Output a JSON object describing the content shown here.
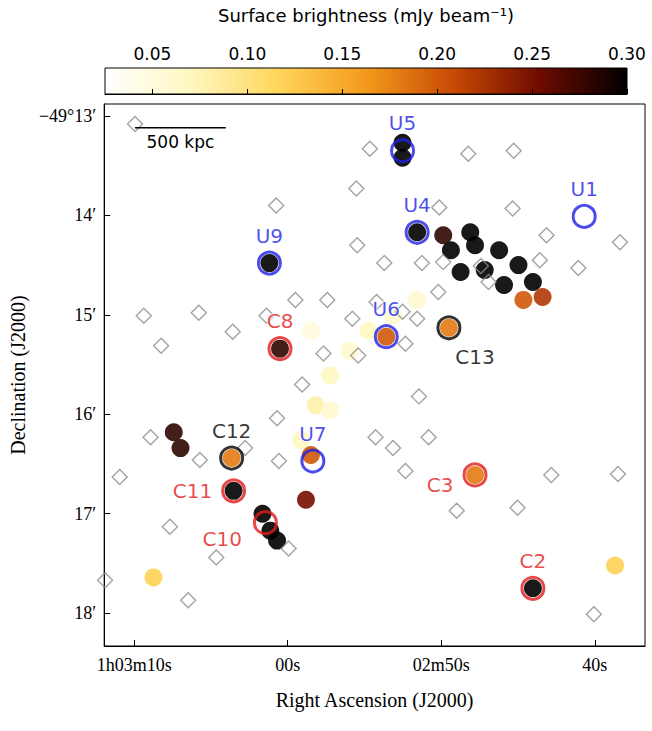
{
  "chart_data": {
    "type": "scatter",
    "xlabel": "Right Ascension (J2000)",
    "ylabel": "Declination (J2000)",
    "xlim": [
      71.95,
      36.73
    ],
    "ylim": [
      18.33,
      12.88
    ],
    "xticks": [
      {
        "value": 70,
        "label": "1h03m10s"
      },
      {
        "value": 60,
        "label": "00s"
      },
      {
        "value": 50,
        "label": "02m50s"
      },
      {
        "value": 40,
        "label": "40s"
      }
    ],
    "yticks": [
      {
        "value": 13,
        "label": "−49°13′"
      },
      {
        "value": 14,
        "label": "14′"
      },
      {
        "value": 15,
        "label": "15′"
      },
      {
        "value": 16,
        "label": "16′"
      },
      {
        "value": 17,
        "label": "17′"
      },
      {
        "value": 18,
        "label": "18′"
      }
    ],
    "grid": false,
    "colorbar": {
      "label": "Surface brightness (mJy beam⁻¹)",
      "range": [
        0.025,
        0.3
      ],
      "ticks": [
        0.05,
        {
          "value": 0.1,
          "label": "0.10"
        },
        0.15,
        {
          "value": 0.2,
          "label": "0.20"
        },
        0.25,
        {
          "value": 0.3,
          "label": "0.30"
        }
      ]
    },
    "emission": {
      "x": [
        49.37,
        47.8,
        46.23,
        44.97,
        44.03,
        43.4,
        44.65,
        47.17,
        48.74,
        45.91,
        48.11,
        49.87,
        52.52,
        52.52,
        51.57,
        61.19,
        60.5,
        53.58,
        49.5,
        59.12,
        58.18,
        57.23,
        55.97,
        54.72,
        53.14,
        51.57,
        58.49,
        57.23,
        58.49,
        58.81,
        63.65,
        67.42,
        66.98,
        63.52,
        61.64,
        61.13,
        60.69,
        47.8,
        44.03,
        68.74,
        38.68
      ],
      "y": [
        14.35,
        14.3,
        14.35,
        14.5,
        14.67,
        14.82,
        14.85,
        14.55,
        14.57,
        14.7,
        14.17,
        14.2,
        13.27,
        13.42,
        14.17,
        14.48,
        15.34,
        15.22,
        15.13,
        16.26,
        15.91,
        15.61,
        15.36,
        15.16,
        15.01,
        14.85,
        15.16,
        15.96,
        16.41,
        16.86,
        16.44,
        16.18,
        16.34,
        16.77,
        17.0,
        17.17,
        17.27,
        16.61,
        17.75,
        17.64,
        17.52
      ],
      "values": [
        0.3,
        0.3,
        0.3,
        0.3,
        0.3,
        0.22,
        0.2,
        0.3,
        0.3,
        0.3,
        0.3,
        0.28,
        0.3,
        0.3,
        0.3,
        0.3,
        0.28,
        0.2,
        0.18,
        0.07,
        0.08,
        0.07,
        0.06,
        0.07,
        0.06,
        0.06,
        0.05,
        0.06,
        0.2,
        0.25,
        0.18,
        0.28,
        0.28,
        0.3,
        0.3,
        0.3,
        0.3,
        0.18,
        0.3,
        0.12,
        0.12
      ]
    },
    "diamonds": {
      "color": "#8c8c8c",
      "marker": "diamond",
      "x": [
        69.94,
        54.65,
        48.24,
        45.28,
        55.53,
        60.75,
        50.13,
        45.35,
        43.14,
        55.47,
        53.71,
        51.26,
        49.87,
        47.42,
        46.92,
        43.58,
        41.07,
        38.36,
        59.5,
        57.42,
        61.38,
        55.79,
        54.21,
        52.52,
        51.57,
        50.19,
        69.37,
        65.79,
        68.24,
        63.58,
        57.67,
        55.41,
        52.33,
        59.06,
        51.45,
        60.69,
        62.77,
        54.28,
        53.14,
        52.33,
        50.82,
        68.93,
        65.72,
        70.94,
        48.99,
        45.03,
        42.83,
        38.49,
        59.94,
        67.67,
        64.65,
        66.48,
        40.06,
        71.89,
        60.57
      ],
      "y": [
        13.08,
        13.33,
        13.38,
        13.35,
        13.73,
        13.9,
        13.92,
        13.93,
        14.2,
        14.3,
        14.48,
        14.48,
        14.47,
        14.51,
        14.67,
        14.45,
        14.53,
        14.27,
        14.85,
        14.85,
        15.01,
        15.04,
        14.87,
        14.97,
        15.04,
        14.77,
        15.01,
        14.98,
        15.31,
        15.17,
        15.39,
        15.41,
        15.29,
        15.7,
        15.82,
        16.04,
        16.34,
        16.23,
        16.34,
        16.57,
        16.23,
        16.23,
        16.46,
        16.63,
        16.97,
        16.94,
        16.61,
        16.6,
        17.35,
        17.13,
        17.44,
        17.87,
        18.01,
        17.67,
        16.47
      ]
    },
    "sources": [
      {
        "label": "U5",
        "x": 52.52,
        "y": 13.35,
        "color": "#1f1fe6",
        "marker": "circle"
      },
      {
        "label": "U4",
        "x": 51.57,
        "y": 14.17,
        "color": "#1f1fe6",
        "marker": "circle"
      },
      {
        "label": "U1",
        "x": 40.69,
        "y": 14.01,
        "color": "#1f1fe6",
        "marker": "circle"
      },
      {
        "label": "U9",
        "x": 61.19,
        "y": 14.48,
        "color": "#1f1fe6",
        "marker": "circle"
      },
      {
        "label": "U6",
        "x": 53.58,
        "y": 15.22,
        "color": "#1f1fe6",
        "marker": "circle"
      },
      {
        "label": "U7",
        "x": 58.36,
        "y": 16.47,
        "color": "#1f1fe6",
        "marker": "circle"
      },
      {
        "label": "C8",
        "x": 60.5,
        "y": 15.34,
        "color": "#e31a1c",
        "marker": "circle"
      },
      {
        "label": "C13",
        "x": 49.5,
        "y": 15.13,
        "color": "#000000",
        "marker": "circle"
      },
      {
        "label": "C12",
        "x": 63.65,
        "y": 16.44,
        "color": "#000000",
        "marker": "circle"
      },
      {
        "label": "C11",
        "x": 63.52,
        "y": 16.77,
        "color": "#e31a1c",
        "marker": "circle"
      },
      {
        "label": "C10",
        "x": 61.45,
        "y": 17.09,
        "color": "#e31a1c",
        "marker": "circle"
      },
      {
        "label": "C3",
        "x": 47.8,
        "y": 16.61,
        "color": "#e31a1c",
        "marker": "circle"
      },
      {
        "label": "C2",
        "x": 44.03,
        "y": 17.75,
        "color": "#e31a1c",
        "marker": "circle"
      }
    ],
    "scale_bar": {
      "label": "500 kpc",
      "x": [
        69.94,
        64.03
      ],
      "y": 13.12
    }
  }
}
